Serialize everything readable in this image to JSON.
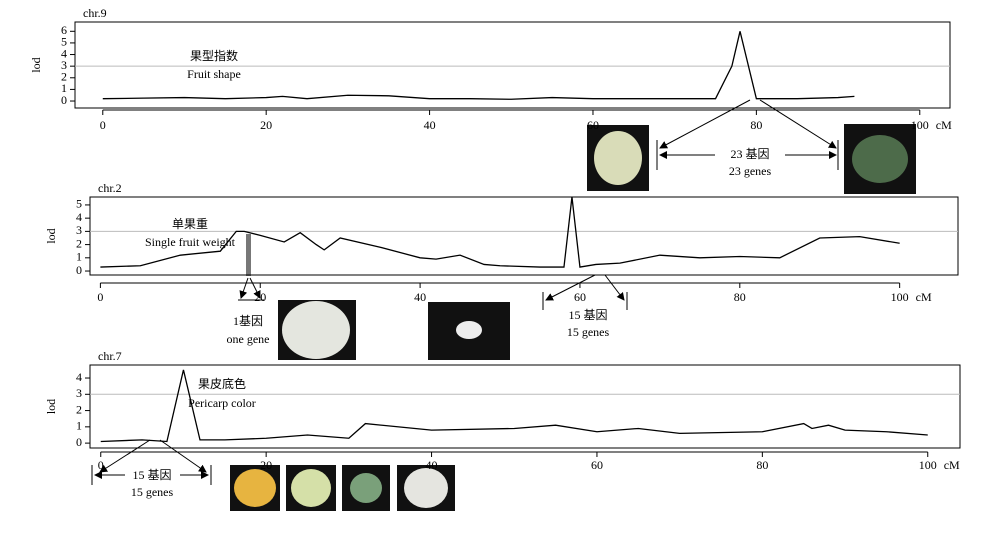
{
  "chart_data": [
    {
      "type": "line",
      "title": "chr.9",
      "ylabel": "lod",
      "xlabel": "cM",
      "annotations": [
        "果型指数",
        "Fruit shape"
      ],
      "gene_labels": [
        "23 基因",
        "23 genes"
      ],
      "x": [
        0,
        5,
        10,
        15,
        20,
        22,
        25,
        30,
        35,
        40,
        45,
        50,
        55,
        60,
        65,
        70,
        75,
        77,
        78,
        80,
        85,
        90,
        92
      ],
      "values": [
        0.2,
        0.25,
        0.3,
        0.2,
        0.3,
        0.4,
        0.2,
        0.5,
        0.45,
        0.2,
        0.2,
        0.15,
        0.3,
        0.2,
        0.2,
        0.2,
        0.2,
        3,
        6,
        0.2,
        0.2,
        0.3,
        0.4
      ],
      "threshold": 3,
      "xlim": [
        -3.4,
        103.7
      ],
      "ylim": [
        -0.6,
        6.8
      ],
      "xticks": [
        0,
        20,
        40,
        60,
        80,
        100
      ],
      "yticks": [
        0,
        1,
        2,
        3,
        4,
        5,
        6
      ],
      "color": "#000000"
    },
    {
      "type": "line",
      "title": "chr.2",
      "ylabel": "lod",
      "xlabel": "cM",
      "annotations": [
        "单果重",
        "Single fruit weight"
      ],
      "gene_labels": [
        "1基因",
        "one gene",
        "15 基因",
        "15 genes"
      ],
      "x": [
        0,
        5,
        10,
        15,
        17,
        18,
        20,
        23,
        25,
        27,
        28,
        30,
        35,
        40,
        42,
        45,
        48,
        50,
        55,
        58,
        59,
        60,
        62,
        65,
        70,
        75,
        80,
        85,
        90,
        95,
        100
      ],
      "values": [
        0.3,
        0.4,
        1.2,
        1.5,
        3,
        3,
        2.7,
        2.2,
        2.9,
        2.0,
        1.6,
        2.5,
        1.8,
        1.0,
        0.9,
        1.2,
        0.5,
        0.4,
        0.3,
        0.3,
        5.6,
        0.3,
        0.5,
        0.6,
        1.2,
        1.0,
        1.1,
        1.0,
        2.5,
        2.6,
        2.1
      ],
      "threshold": 3,
      "xlim": [
        -1.3,
        107.3
      ],
      "ylim": [
        -0.3,
        5.6
      ],
      "xticks": [
        0,
        20,
        40,
        60,
        80,
        100
      ],
      "yticks": [
        0,
        1,
        2,
        3,
        4,
        5
      ],
      "color": "#000000"
    },
    {
      "type": "line",
      "title": "chr.7",
      "ylabel": "lod",
      "xlabel": "cM",
      "annotations": [
        "果皮底色",
        "Pericarp color"
      ],
      "gene_labels": [
        "15 基因",
        "15 genes"
      ],
      "x": [
        0,
        5,
        8,
        10,
        12,
        15,
        20,
        25,
        30,
        32,
        40,
        50,
        55,
        60,
        65,
        70,
        80,
        85,
        86,
        88,
        90,
        95,
        100
      ],
      "values": [
        0.1,
        0.2,
        0.1,
        4.5,
        0.2,
        0.2,
        0.3,
        0.5,
        0.3,
        1.2,
        0.8,
        0.9,
        1.1,
        0.7,
        0.9,
        0.6,
        0.7,
        1.2,
        0.9,
        1.1,
        0.8,
        0.7,
        0.5
      ],
      "threshold": 3,
      "xlim": [
        -1.3,
        103.9
      ],
      "ylim": [
        -0.3,
        4.8
      ],
      "xticks": [
        0,
        20,
        40,
        60,
        80,
        100
      ],
      "yticks": [
        0,
        1,
        2,
        3,
        4
      ],
      "color": "#000000"
    }
  ]
}
